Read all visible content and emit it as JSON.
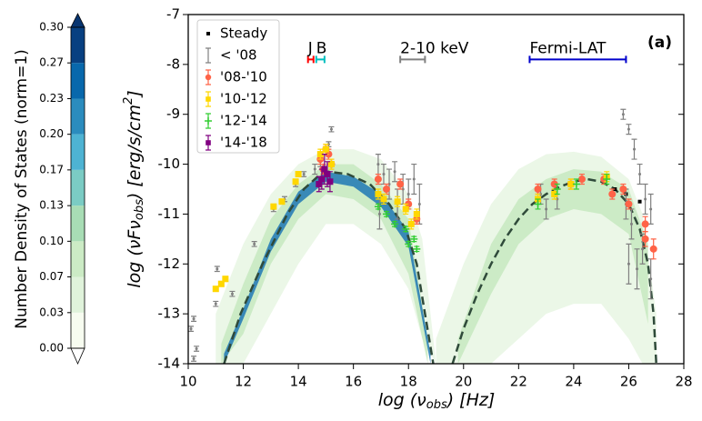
{
  "chart_data": {
    "type": "scatter",
    "xlabel": {
      "main": "log (ν",
      "sub": "obs",
      "rest": ")  [Hz]"
    },
    "ylabel": {
      "main": "log (νFν",
      "sub": "obs",
      "rest": ")  [erg/s/cm",
      "sup": "2",
      "end": "]"
    },
    "annotation": "(a)",
    "xlim": [
      10,
      28
    ],
    "xticks": [
      10,
      12,
      14,
      16,
      18,
      20,
      22,
      24,
      26,
      28
    ],
    "ylim": [
      -14,
      -7
    ],
    "yticks": [
      -14,
      -13,
      -12,
      -11,
      -10,
      -9,
      -8,
      -7
    ],
    "legend": "upper left",
    "colorbar": {
      "label": "Number Density of States (norm=1)",
      "lim": [
        0,
        0.3
      ],
      "ticks": [
        {
          "value": 0,
          "label": "0.00"
        },
        {
          "value": 0.0333,
          "label": "0.03"
        },
        {
          "value": 0.0667,
          "label": "0.07"
        },
        {
          "value": 0.1,
          "label": "0.10"
        },
        {
          "value": 0.1333,
          "label": "0.13"
        },
        {
          "value": 0.1667,
          "label": "0.17"
        },
        {
          "value": 0.2,
          "label": "0.20"
        },
        {
          "value": 0.2333,
          "label": "0.23"
        },
        {
          "value": 0.2667,
          "label": "0.27"
        },
        {
          "value": 0.3,
          "label": "0.30"
        }
      ],
      "colors": [
        "#f7fcf0",
        "#e0f3db",
        "#ccebc5",
        "#a8ddb5",
        "#7bccc4",
        "#4eb3d3",
        "#2b8cbe",
        "#0868ac",
        "#084081"
      ],
      "under": "#ffffff",
      "over": "#083570"
    },
    "envelopes": [
      {
        "color": "#e8f6e3",
        "x": [
          11,
          12,
          13,
          14,
          15,
          16,
          17,
          18,
          18.5,
          19
        ],
        "upper": [
          -13.0,
          -11.6,
          -10.6,
          -10.0,
          -9.7,
          -9.7,
          -9.9,
          -10.6,
          -11.5,
          -14
        ],
        "lower": [
          -14,
          -14,
          -13,
          -12,
          -11.2,
          -11.2,
          -11.6,
          -12.5,
          -13.5,
          -14
        ]
      },
      {
        "color": "#e8f6e3",
        "x": [
          19,
          20,
          21,
          22,
          23,
          24,
          25,
          26,
          26.5,
          27
        ],
        "upper": [
          -13.5,
          -12,
          -10.8,
          -10.1,
          -9.8,
          -9.75,
          -9.85,
          -10.3,
          -11,
          -13
        ],
        "lower": [
          -14,
          -14,
          -14,
          -13.5,
          -13,
          -12.8,
          -12.8,
          -13.5,
          -14,
          -14
        ]
      },
      {
        "color": "#c7e9c0",
        "x": [
          11.2,
          12,
          13,
          14,
          15,
          16,
          17,
          18,
          18.7
        ],
        "upper": [
          -13.6,
          -12.4,
          -11.1,
          -10.4,
          -10.0,
          -10.0,
          -10.4,
          -11.1,
          -13.5
        ],
        "lower": [
          -14,
          -13.4,
          -12,
          -11.1,
          -10.6,
          -10.7,
          -11.1,
          -12.2,
          -14
        ]
      },
      {
        "color": "#c7e9c0",
        "x": [
          19.8,
          21,
          22,
          23,
          24,
          25,
          26,
          26.7
        ],
        "upper": [
          -13.5,
          -11.6,
          -10.7,
          -10.3,
          -10.1,
          -10.15,
          -10.5,
          -11.6
        ],
        "lower": [
          -14,
          -12.6,
          -11.6,
          -11.1,
          -10.9,
          -11.0,
          -11.4,
          -13.2
        ]
      },
      {
        "color": "#1f78b4",
        "x": [
          11.3,
          12,
          13,
          14,
          15,
          16,
          17,
          18,
          18.8
        ],
        "upper": [
          -13.8,
          -12.9,
          -11.5,
          -10.55,
          -10.15,
          -10.25,
          -10.6,
          -11.35,
          -13.8
        ],
        "lower": [
          -14,
          -13.1,
          -11.75,
          -10.8,
          -10.35,
          -10.45,
          -10.85,
          -11.65,
          -14
        ]
      }
    ],
    "model": {
      "color": "#2f4a3a",
      "x": [
        11.3,
        11.9,
        12.7,
        13.6,
        14.2,
        14.8,
        15.1,
        15.8,
        16.6,
        17.3,
        17.9,
        18.3,
        18.6,
        18.9,
        19.2,
        19.6,
        20,
        20.5,
        21,
        21.5,
        22,
        22.5,
        23,
        23.5,
        24,
        24.5,
        25,
        25.5,
        26,
        26.4,
        26.7,
        26.9,
        27
      ],
      "values": [
        -14,
        -13,
        -12,
        -11,
        -10.5,
        -10.2,
        -10.15,
        -10.2,
        -10.4,
        -10.8,
        -11.3,
        -12,
        -13,
        -14,
        null,
        -14,
        -13.3,
        -12.6,
        -12,
        -11.5,
        -11.1,
        -10.8,
        -10.6,
        -10.45,
        -10.35,
        -10.3,
        -10.35,
        -10.5,
        -10.8,
        -11.3,
        -12,
        -13,
        -14
      ]
    },
    "bands": [
      {
        "label": "J",
        "color": "#ff0000",
        "x": [
          14.35,
          14.55
        ],
        "y": -7.9
      },
      {
        "label": "B",
        "color": "#00bfbf",
        "x": [
          14.65,
          14.95
        ],
        "y": -7.9
      },
      {
        "label": "2-10 keV",
        "color": "#808080",
        "x": [
          17.7,
          18.6
        ],
        "y": -7.9
      },
      {
        "label": "Fermi-LAT",
        "color": "#0000cc",
        "x": [
          22.4,
          25.9
        ],
        "y": -7.9
      }
    ],
    "series": [
      {
        "name": "Steady",
        "color": "#000000",
        "marker": "dot",
        "x": [
          25.5,
          25.9,
          26.4
        ],
        "values": [
          -10.5,
          -10.6,
          -10.75
        ]
      },
      {
        "name": "< '08",
        "color": "#808080",
        "marker": "bar",
        "x": [
          10.1,
          10.2,
          10.3,
          10.2,
          11.0,
          11.05,
          11.6,
          12.4,
          13.1,
          13.5,
          13.9,
          14.2,
          14.6,
          14.8,
          15.2,
          15.1,
          16.9,
          17.1,
          17.3,
          17.5,
          17.8,
          18.0,
          18.2,
          18.4,
          16.95,
          17.6,
          25.8,
          26.0,
          26.2,
          26.4,
          26.6,
          26.8,
          26.0,
          26.3,
          26.5,
          26.8,
          25.9,
          26.1,
          22.8,
          23.0,
          23.4
        ],
        "values": [
          -13.3,
          -13.1,
          -13.7,
          -13.9,
          -12.8,
          -12.1,
          -12.6,
          -11.6,
          -10.9,
          -10.7,
          -10.4,
          -10.2,
          -10.1,
          -9.95,
          -9.3,
          -9.6,
          -10.0,
          -10.2,
          -10.4,
          -10.15,
          -10.5,
          -10.6,
          -10.3,
          -10.8,
          -11.0,
          -10.8,
          -9.0,
          -9.3,
          -9.7,
          -10.2,
          -10.7,
          -10.9,
          -12.0,
          -12.1,
          -11.7,
          -12.3,
          -10.8,
          -11.2,
          -10.6,
          -10.9,
          -10.7
        ],
        "errors": [
          0.05,
          0.05,
          0.05,
          0.05,
          0.05,
          0.05,
          0.05,
          0.05,
          0.05,
          0.05,
          0.05,
          0.05,
          0.1,
          0.1,
          0.05,
          0.05,
          0.2,
          0.2,
          0.3,
          0.2,
          0.3,
          0.3,
          0.3,
          0.4,
          0.3,
          0.3,
          0.1,
          0.1,
          0.2,
          0.2,
          0.3,
          0.3,
          0.4,
          0.4,
          0.3,
          0.4,
          0.3,
          0.3,
          0.2,
          0.2,
          0.2
        ]
      },
      {
        "name": "'08-'10",
        "color": "#ff6347",
        "marker": "circle",
        "x": [
          14.8,
          14.9,
          15.0,
          15.1,
          15.2,
          16.9,
          17.2,
          17.7,
          18.0,
          18.3,
          22.7,
          23.3,
          23.9,
          24.3,
          25.1,
          25.8,
          26.0,
          26.6,
          26.9,
          26.6,
          25.4
        ],
        "values": [
          -9.9,
          -10.1,
          -9.7,
          -9.8,
          -10.0,
          -10.3,
          -10.5,
          -10.4,
          -10.8,
          -11.1,
          -10.5,
          -10.4,
          -10.4,
          -10.3,
          -10.3,
          -10.5,
          -10.8,
          -11.2,
          -11.7,
          -11.5,
          -10.6
        ],
        "errors": [
          0.1,
          0.1,
          0.1,
          0.1,
          0.1,
          0.1,
          0.1,
          0.1,
          0.1,
          0.1,
          0.1,
          0.1,
          0.1,
          0.1,
          0.1,
          0.1,
          0.1,
          0.15,
          0.2,
          0.15,
          0.1
        ]
      },
      {
        "name": "'10-'12",
        "color": "#ffd700",
        "marker": "square",
        "x": [
          11.0,
          11.2,
          11.35,
          13.1,
          13.4,
          13.9,
          14.0,
          14.8,
          15.0,
          15.2,
          16.9,
          17.1,
          17.6,
          17.9,
          18.3,
          18.1,
          22.7,
          23.3,
          23.9,
          25.2
        ],
        "values": [
          -12.5,
          -12.4,
          -12.3,
          -10.85,
          -10.75,
          -10.35,
          -10.2,
          -9.8,
          -9.7,
          -10.0,
          -10.6,
          -10.7,
          -10.75,
          -10.9,
          -11.0,
          -11.2,
          -10.7,
          -10.6,
          -10.4,
          -10.25
        ],
        "errors": [
          0.05,
          0.05,
          0.05,
          0.05,
          0.05,
          0.05,
          0.05,
          0.1,
          0.1,
          0.1,
          0.1,
          0.1,
          0.1,
          0.1,
          0.1,
          0.1,
          0.1,
          0.1,
          0.1,
          0.1
        ]
      },
      {
        "name": "'12-'14",
        "color": "#32cd32",
        "marker": "plus",
        "x": [
          16.9,
          17.2,
          17.5,
          17.9,
          18.2,
          18.3,
          18.0,
          22.7,
          23.4,
          24.1,
          25.2
        ],
        "values": [
          -10.85,
          -11.0,
          -11.2,
          -11.3,
          -11.5,
          -11.7,
          -11.6,
          -10.8,
          -10.5,
          -10.4,
          -10.3
        ],
        "errors": [
          0.05,
          0.05,
          0.05,
          0.05,
          0.05,
          0.05,
          0.05,
          0.1,
          0.1,
          0.1,
          0.1
        ]
      },
      {
        "name": "'14-'18",
        "color": "#800080",
        "marker": "square",
        "x": [
          14.75,
          14.85,
          14.95,
          15.05,
          15.15
        ],
        "values": [
          -10.4,
          -10.3,
          -10.1,
          -10.2,
          -10.35
        ],
        "errors": [
          0.15,
          0.2,
          0.3,
          0.25,
          0.2
        ]
      }
    ]
  }
}
